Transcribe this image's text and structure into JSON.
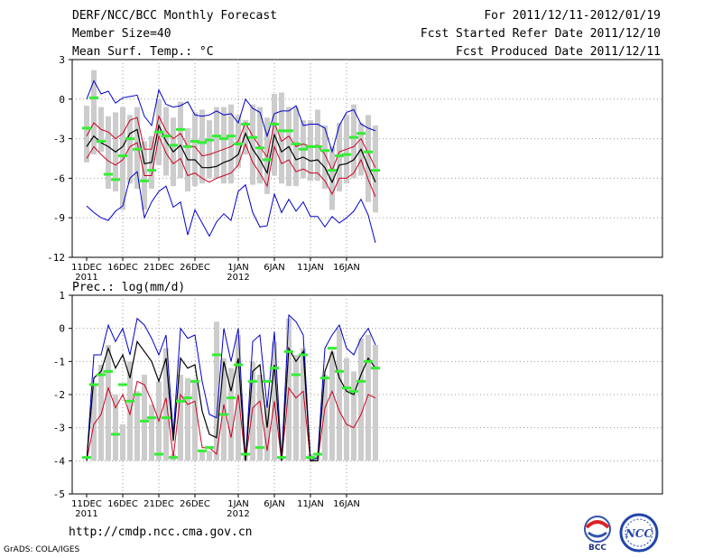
{
  "header": {
    "title": "DERF/NCC/BCC Monthly Forecast",
    "member_size": "Member Size=40",
    "variable": "Mean Surf. Temp.: °C",
    "period": "For 2011/12/11-2012/01/19",
    "refer_date": "Fcst Started Refer Date 2011/12/10",
    "produced_date": "Fcst Produced Date 2011/12/11"
  },
  "footer": {
    "url": "http://cmdp.ncc.cma.gov.cn",
    "grads": "GrADS: COLA/IGES",
    "logo_bcc": "BCC",
    "logo_ncc": "NCC"
  },
  "colors": {
    "max_min": "#0000cc",
    "spread": "#cc0022",
    "mean": "#000000",
    "obs": "#33ee33",
    "bar": "#cccccc"
  },
  "chart_data": [
    {
      "type": "line",
      "title": "Mean Surf. Temp.: °C",
      "ylim": [
        -12,
        3
      ],
      "yticks": [
        "3",
        "0",
        "-3",
        "-6",
        "-9",
        "-12"
      ],
      "xticks": [
        {
          "day": 0,
          "label": "11DEC",
          "sub": "2011"
        },
        {
          "day": 5,
          "label": "16DEC",
          "sub": ""
        },
        {
          "day": 10,
          "label": "21DEC",
          "sub": ""
        },
        {
          "day": 15,
          "label": "26DEC",
          "sub": ""
        },
        {
          "day": 21,
          "label": "1JAN",
          "sub": "2012"
        },
        {
          "day": 26,
          "label": "6JAN",
          "sub": ""
        },
        {
          "day": 31,
          "label": "11JAN",
          "sub": ""
        },
        {
          "day": 36,
          "label": "16JAN",
          "sub": ""
        }
      ],
      "series": [
        {
          "name": "max",
          "values": [
            -8.1,
            -8.6,
            -9.0,
            -9.2,
            -8.5,
            -8.1,
            -6.0,
            -5.5,
            -9.0,
            -7.8,
            -7.0,
            -6.6,
            -8.2,
            -7.8,
            -10.3,
            -8.4,
            -9.4,
            -10.4,
            -9.3,
            -8.7,
            -9.2,
            -7.0,
            -6.5,
            -8.6,
            -9.7,
            -9.6,
            -7.2,
            -8.6,
            -7.6,
            -8.5,
            -7.8,
            -8.9,
            -8.9,
            -9.7,
            -8.9,
            -9.4,
            -9.0,
            -8.5,
            -7.6,
            -8.8,
            -10.9
          ]
        },
        {
          "name": "min",
          "values": [
            0.0,
            1.4,
            0.4,
            0.6,
            -0.3,
            0.1,
            0.2,
            0.3,
            -1.3,
            -2.0,
            0.7,
            -0.4,
            -0.6,
            -0.5,
            -0.2,
            -1.2,
            -1.3,
            -1.2,
            -0.9,
            -1.2,
            -1.1,
            -1.8,
            0.0,
            -0.7,
            -1.0,
            -2.8,
            -1.1,
            -0.9,
            -0.9,
            -0.5,
            -2.0,
            -1.9,
            -1.9,
            -2.2,
            -4.0,
            -2.0,
            -1.0,
            -0.8,
            -1.9,
            -2.2,
            -2.4
          ]
        },
        {
          "name": "mean",
          "values": [
            -3.6,
            -2.8,
            -3.3,
            -3.6,
            -4.0,
            -3.6,
            -2.6,
            -2.3,
            -4.9,
            -4.8,
            -2.0,
            -3.2,
            -4.0,
            -3.5,
            -4.6,
            -4.6,
            -5.2,
            -5.2,
            -5.1,
            -4.8,
            -4.6,
            -4.2,
            -2.6,
            -3.8,
            -4.6,
            -5.6,
            -2.7,
            -4.0,
            -3.6,
            -4.6,
            -4.4,
            -4.7,
            -4.6,
            -5.2,
            -6.3,
            -5.0,
            -4.9,
            -4.6,
            -3.8,
            -5.1,
            -6.3
          ]
        },
        {
          "name": "upper",
          "values": [
            -2.8,
            -1.8,
            -2.3,
            -2.5,
            -3.0,
            -2.6,
            -1.6,
            -1.4,
            -3.8,
            -3.8,
            -1.3,
            -2.4,
            -3.0,
            -2.6,
            -3.6,
            -3.6,
            -4.3,
            -4.2,
            -4.0,
            -3.8,
            -3.6,
            -3.2,
            -1.8,
            -2.8,
            -3.6,
            -4.4,
            -1.8,
            -3.2,
            -2.8,
            -3.6,
            -3.4,
            -3.6,
            -3.5,
            -4.2,
            -5.4,
            -4.0,
            -3.8,
            -3.6,
            -3.0,
            -4.1,
            -5.2
          ]
        },
        {
          "name": "lower",
          "values": [
            -4.5,
            -3.6,
            -4.2,
            -4.7,
            -5.0,
            -4.6,
            -3.6,
            -3.3,
            -5.8,
            -5.8,
            -2.8,
            -4.1,
            -4.9,
            -4.5,
            -5.8,
            -5.6,
            -6.0,
            -6.3,
            -6.0,
            -5.8,
            -5.6,
            -5.0,
            -3.4,
            -4.8,
            -5.6,
            -6.6,
            -3.6,
            -4.9,
            -4.6,
            -5.5,
            -5.3,
            -5.6,
            -5.6,
            -6.2,
            -7.2,
            -6.0,
            -6.0,
            -5.6,
            -4.6,
            -6.1,
            -7.4
          ]
        },
        {
          "name": "box_top",
          "values": [
            -0.5,
            2.2,
            -0.6,
            -1.3,
            -1.0,
            -0.6,
            -1.2,
            -0.6,
            -3.2,
            -2.8,
            0.0,
            -0.6,
            -1.4,
            -0.2,
            -2.2,
            -1.0,
            -0.8,
            -1.6,
            -0.6,
            -0.6,
            -0.4,
            -1.2,
            -1.6,
            -0.4,
            -0.6,
            -1.4,
            0.4,
            0.5,
            -0.6,
            -0.6,
            -1.6,
            -1.6,
            -0.8,
            -2.0,
            -3.6,
            -1.8,
            -1.2,
            -0.4,
            -1.8,
            -1.2,
            -2.0
          ]
        },
        {
          "name": "box_bottom",
          "values": [
            -4.8,
            -4.2,
            -4.0,
            -6.8,
            -7.0,
            -8.4,
            -6.4,
            -6.8,
            -8.4,
            -6.8,
            -5.0,
            -5.8,
            -6.6,
            -6.0,
            -7.0,
            -6.6,
            -6.4,
            -6.0,
            -6.0,
            -6.4,
            -6.4,
            -5.2,
            -4.2,
            -6.5,
            -6.4,
            -7.2,
            -5.8,
            -6.4,
            -6.6,
            -6.6,
            -6.0,
            -6.2,
            -6.2,
            -6.8,
            -8.4,
            -7.0,
            -6.4,
            -6.0,
            -5.8,
            -7.8,
            -8.6
          ]
        },
        {
          "name": "obs",
          "values": [
            -2.2,
            0.1,
            -3.2,
            -5.7,
            -6.1,
            -4.3,
            -3.0,
            -3.8,
            -6.2,
            -5.4,
            -2.5,
            -2.8,
            -3.5,
            -2.3,
            -3.6,
            -3.2,
            -3.3,
            -3.1,
            -2.8,
            -3.0,
            -2.8,
            -3.4,
            -1.9,
            -2.9,
            -3.7,
            -4.6,
            -1.9,
            -2.4,
            -2.4,
            -3.4,
            -3.8,
            -3.6,
            -3.6,
            -3.9,
            -5.4,
            -4.3,
            -4.2,
            -2.9,
            -2.6,
            -4.0,
            -5.4
          ]
        }
      ]
    },
    {
      "type": "line",
      "title": "Prec.: log(mm/d)",
      "ylim": [
        -5,
        1
      ],
      "yticks": [
        "1",
        "0",
        "-1",
        "-2",
        "-3",
        "-4",
        "-5"
      ],
      "xticks": [
        {
          "day": 0,
          "label": "11DEC",
          "sub": "2011"
        },
        {
          "day": 5,
          "label": "16DEC",
          "sub": ""
        },
        {
          "day": 10,
          "label": "21DEC",
          "sub": ""
        },
        {
          "day": 15,
          "label": "26DEC",
          "sub": ""
        },
        {
          "day": 21,
          "label": "1JAN",
          "sub": "2012"
        },
        {
          "day": 26,
          "label": "6JAN",
          "sub": ""
        },
        {
          "day": 31,
          "label": "11JAN",
          "sub": ""
        },
        {
          "day": 36,
          "label": "16JAN",
          "sub": ""
        }
      ],
      "series": [
        {
          "name": "max",
          "values": [
            -4.0,
            -0.8,
            -0.8,
            0.1,
            -0.4,
            0.0,
            -0.8,
            0.3,
            0.1,
            -0.3,
            -0.8,
            -0.2,
            -3.2,
            0.0,
            -0.3,
            -0.2,
            -1.6,
            -2.6,
            -2.7,
            0.0,
            -1.0,
            0.0,
            -4.0,
            -0.4,
            -0.2,
            -2.4,
            -0.1,
            -4.0,
            0.4,
            0.2,
            -0.2,
            -4.0,
            -3.9,
            -0.6,
            -0.2,
            0.1,
            -0.6,
            -0.8,
            -0.3,
            0.0,
            -0.5
          ]
        },
        {
          "name": "mean",
          "values": [
            -4.0,
            -1.5,
            -1.3,
            -0.6,
            -1.2,
            -0.8,
            -1.5,
            -0.4,
            -0.7,
            -1.0,
            -1.6,
            -0.9,
            -3.4,
            -0.9,
            -1.2,
            -1.1,
            -2.5,
            -3.2,
            -3.3,
            -1.0,
            -1.9,
            -0.9,
            -4.0,
            -1.3,
            -1.1,
            -3.0,
            -1.1,
            -4.0,
            -0.6,
            -1.0,
            -0.7,
            -4.0,
            -4.0,
            -1.3,
            -0.7,
            -1.5,
            -1.9,
            -2.0,
            -1.4,
            -0.9,
            -1.2
          ]
        },
        {
          "name": "spread",
          "values": [
            -4.0,
            -2.9,
            -2.6,
            -1.8,
            -2.4,
            -2.0,
            -2.6,
            -1.6,
            -1.7,
            -2.2,
            -2.8,
            -2.1,
            -3.9,
            -2.0,
            -2.3,
            -2.2,
            -3.6,
            -3.6,
            -3.8,
            -2.3,
            -3.3,
            -2.0,
            -4.0,
            -2.4,
            -2.2,
            -3.7,
            -2.2,
            -4.0,
            -1.8,
            -2.1,
            -1.9,
            -4.0,
            -4.0,
            -2.4,
            -1.9,
            -2.5,
            -2.9,
            -3.0,
            -2.6,
            -2.0,
            -2.1
          ]
        },
        {
          "name": "box_top",
          "values": [
            -4.0,
            -1.7,
            -1.1,
            -0.5,
            -2.0,
            -2.9,
            -1.0,
            -1.9,
            -1.4,
            -2.3,
            -1.6,
            -0.6,
            -3.8,
            -1.4,
            -1.5,
            -1.6,
            -3.7,
            -3.7,
            0.2,
            -0.9,
            -1.2,
            -0.2,
            -3.8,
            -1.0,
            -1.4,
            -2.3,
            -0.4,
            -3.9,
            0.3,
            -0.8,
            -0.6,
            -3.8,
            -3.8,
            -1.4,
            -0.7,
            0.0,
            -0.9,
            -1.3,
            -0.3,
            -0.2,
            -0.5
          ]
        },
        {
          "name": "obs",
          "values": [
            -3.9,
            -1.7,
            -1.4,
            -1.3,
            -3.2,
            -1.7,
            -2.2,
            -2.0,
            -2.8,
            -2.7,
            -3.8,
            -2.7,
            -3.9,
            -2.2,
            -2.1,
            -1.6,
            -3.7,
            -3.6,
            -0.8,
            -2.6,
            -2.1,
            -1.1,
            -3.8,
            -1.6,
            -3.6,
            -1.6,
            -1.2,
            -3.9,
            -0.7,
            -1.4,
            -0.8,
            -3.9,
            -3.8,
            -1.5,
            -0.6,
            -1.3,
            -1.8,
            -1.9,
            -1.6,
            -1.0,
            -1.2
          ]
        }
      ]
    }
  ]
}
